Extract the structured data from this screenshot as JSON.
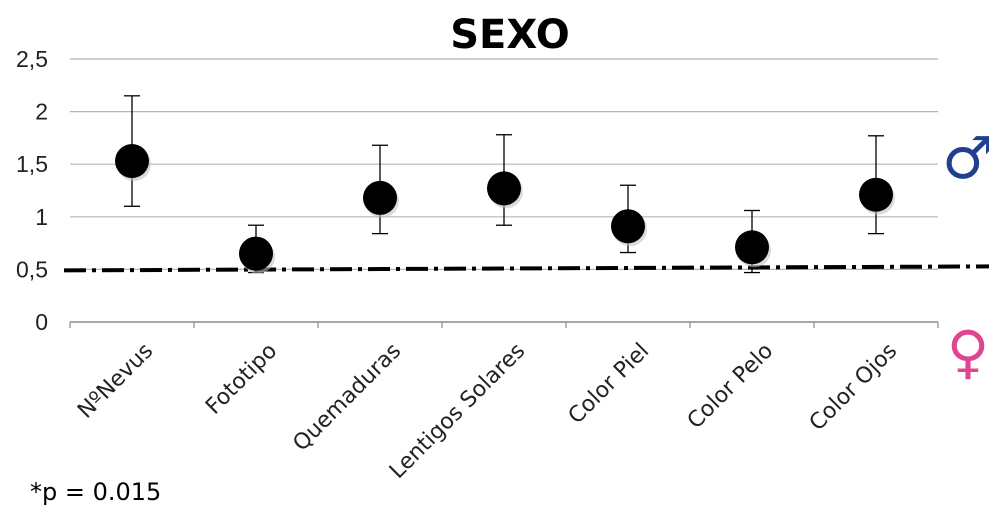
{
  "chart_data": {
    "type": "scatter",
    "title": "SEXO",
    "xlabel": "",
    "ylabel": "",
    "ylim": [
      0,
      2.5
    ],
    "yticks": [
      "0",
      "0,5",
      "1",
      "1,5",
      "2",
      "2,5"
    ],
    "grid": true,
    "categories": [
      "NºNevus",
      "Fototipo",
      "Quemaduras",
      "Lentigos Solares",
      "Color Piel",
      "Color Pelo",
      "Color Ojos"
    ],
    "values": [
      1.53,
      0.65,
      1.18,
      1.27,
      0.91,
      0.71,
      1.21
    ],
    "error_low": [
      1.1,
      0.47,
      0.84,
      0.92,
      0.66,
      0.47,
      0.84
    ],
    "error_high": [
      2.15,
      0.92,
      1.68,
      1.78,
      1.3,
      1.06,
      1.77
    ],
    "reference_line": 0.5,
    "legend": {
      "male_symbol": "♂",
      "female_symbol": "♀",
      "male_color": "#1f3f8f",
      "female_color": "#e0458f"
    },
    "annotation": "*p = 0.015"
  }
}
